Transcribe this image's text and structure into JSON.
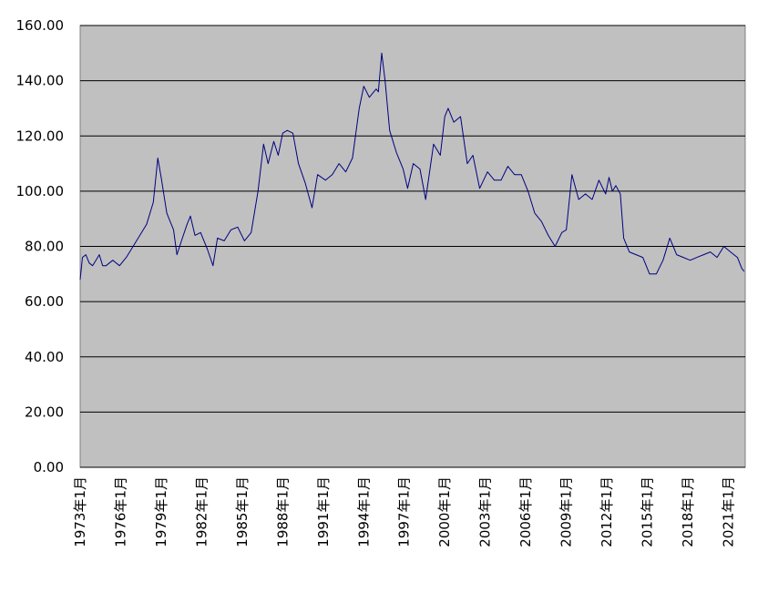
{
  "chart_data": {
    "type": "line",
    "title": "",
    "xlabel": "",
    "ylabel": "",
    "ylim": [
      0,
      160
    ],
    "y_ticks": [
      "0.00",
      "20.00",
      "40.00",
      "60.00",
      "80.00",
      "100.00",
      "120.00",
      "140.00",
      "160.00"
    ],
    "x_tick_labels": [
      "1973年1月",
      "1976年1月",
      "1979年1月",
      "1982年1月",
      "1985年1月",
      "1988年1月",
      "1991年1月",
      "1994年1月",
      "1997年1月",
      "2000年1月",
      "2003年1月",
      "2006年1月",
      "2009年1月",
      "2012年1月",
      "2015年1月",
      "2018年1月",
      "2021年1月"
    ],
    "x_range": [
      "1973-01",
      "2022-04"
    ],
    "grid": "horizontal",
    "background_color": "#c0c0c0",
    "line_color": "#000080",
    "series": [
      {
        "points": [
          [
            "1973-01",
            68
          ],
          [
            "1973-03",
            76
          ],
          [
            "1973-06",
            77
          ],
          [
            "1973-09",
            74
          ],
          [
            "1973-12",
            73
          ],
          [
            "1974-03",
            75
          ],
          [
            "1974-06",
            77
          ],
          [
            "1974-09",
            73
          ],
          [
            "1974-12",
            73
          ],
          [
            "1975-06",
            75
          ],
          [
            "1975-12",
            73
          ],
          [
            "1976-06",
            76
          ],
          [
            "1976-12",
            80
          ],
          [
            "1977-06",
            84
          ],
          [
            "1977-12",
            88
          ],
          [
            "1978-06",
            96
          ],
          [
            "1978-10",
            112
          ],
          [
            "1979-01",
            105
          ],
          [
            "1979-06",
            92
          ],
          [
            "1979-12",
            86
          ],
          [
            "1980-03",
            77
          ],
          [
            "1980-07",
            82
          ],
          [
            "1980-12",
            88
          ],
          [
            "1981-03",
            91
          ],
          [
            "1981-07",
            84
          ],
          [
            "1981-12",
            85
          ],
          [
            "1982-06",
            79
          ],
          [
            "1982-11",
            73
          ],
          [
            "1983-03",
            83
          ],
          [
            "1983-09",
            82
          ],
          [
            "1984-03",
            86
          ],
          [
            "1984-09",
            87
          ],
          [
            "1985-03",
            82
          ],
          [
            "1985-09",
            85
          ],
          [
            "1986-03",
            100
          ],
          [
            "1986-08",
            117
          ],
          [
            "1986-12",
            110
          ],
          [
            "1987-05",
            118
          ],
          [
            "1987-09",
            113
          ],
          [
            "1988-01",
            121
          ],
          [
            "1988-05",
            122
          ],
          [
            "1988-10",
            121
          ],
          [
            "1989-03",
            110
          ],
          [
            "1989-09",
            103
          ],
          [
            "1990-03",
            94
          ],
          [
            "1990-08",
            106
          ],
          [
            "1991-03",
            104
          ],
          [
            "1991-09",
            106
          ],
          [
            "1992-03",
            110
          ],
          [
            "1992-09",
            107
          ],
          [
            "1993-03",
            112
          ],
          [
            "1993-09",
            130
          ],
          [
            "1994-01",
            138
          ],
          [
            "1994-06",
            134
          ],
          [
            "1994-12",
            137
          ],
          [
            "1995-02",
            136
          ],
          [
            "1995-05",
            150
          ],
          [
            "1995-08",
            140
          ],
          [
            "1995-12",
            122
          ],
          [
            "1996-06",
            114
          ],
          [
            "1996-12",
            108
          ],
          [
            "1997-04",
            101
          ],
          [
            "1997-09",
            110
          ],
          [
            "1998-03",
            108
          ],
          [
            "1998-08",
            97
          ],
          [
            "1999-03",
            117
          ],
          [
            "1999-09",
            113
          ],
          [
            "2000-01",
            127
          ],
          [
            "2000-04",
            130
          ],
          [
            "2000-09",
            125
          ],
          [
            "2001-03",
            127
          ],
          [
            "2001-09",
            110
          ],
          [
            "2002-02",
            113
          ],
          [
            "2002-08",
            101
          ],
          [
            "2003-03",
            107
          ],
          [
            "2003-09",
            104
          ],
          [
            "2004-03",
            104
          ],
          [
            "2004-09",
            109
          ],
          [
            "2005-03",
            106
          ],
          [
            "2005-09",
            106
          ],
          [
            "2006-03",
            100
          ],
          [
            "2006-09",
            92
          ],
          [
            "2007-03",
            89
          ],
          [
            "2007-09",
            84
          ],
          [
            "2008-03",
            80
          ],
          [
            "2008-09",
            85
          ],
          [
            "2009-01",
            86
          ],
          [
            "2009-06",
            106
          ],
          [
            "2009-12",
            97
          ],
          [
            "2010-06",
            99
          ],
          [
            "2010-12",
            97
          ],
          [
            "2011-06",
            104
          ],
          [
            "2011-12",
            99
          ],
          [
            "2012-03",
            105
          ],
          [
            "2012-06",
            100
          ],
          [
            "2012-09",
            102
          ],
          [
            "2013-01",
            99
          ],
          [
            "2013-04",
            83
          ],
          [
            "2013-09",
            78
          ],
          [
            "2014-03",
            77
          ],
          [
            "2014-09",
            76
          ],
          [
            "2015-03",
            70
          ],
          [
            "2015-09",
            70
          ],
          [
            "2016-03",
            75
          ],
          [
            "2016-09",
            83
          ],
          [
            "2017-03",
            77
          ],
          [
            "2017-09",
            76
          ],
          [
            "2018-03",
            75
          ],
          [
            "2018-09",
            76
          ],
          [
            "2019-03",
            77
          ],
          [
            "2019-09",
            78
          ],
          [
            "2020-03",
            76
          ],
          [
            "2020-09",
            80
          ],
          [
            "2021-03",
            78
          ],
          [
            "2021-09",
            76
          ],
          [
            "2022-01",
            72
          ],
          [
            "2022-03",
            71
          ]
        ]
      }
    ]
  }
}
